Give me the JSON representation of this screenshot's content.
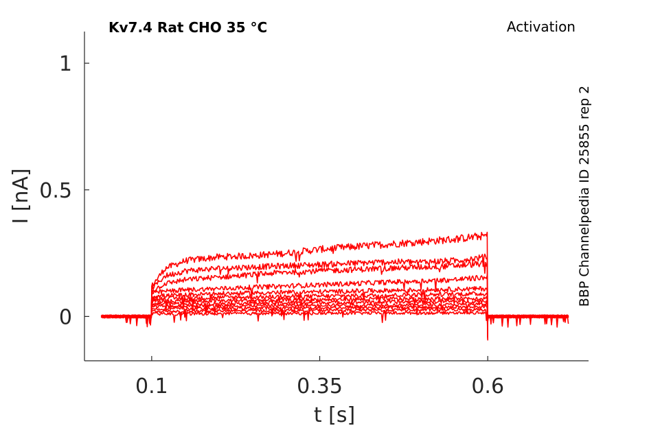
{
  "chart_data": {
    "type": "line",
    "title": "Kv7.4  Rat  CHO  35 °C",
    "protocol_label": "Activation",
    "source_label": "BBP Channelpedia ID 25855 rep 2",
    "xlabel": "t [s]",
    "ylabel": "I [nA]",
    "xlim": [
      0.0,
      0.75
    ],
    "ylim": [
      -0.175,
      1.125
    ],
    "xticks": [
      0.1,
      0.35,
      0.6
    ],
    "xtick_labels": [
      "0.1",
      "0.35",
      "0.6"
    ],
    "yticks": [
      0,
      0.5,
      1
    ],
    "ytick_labels": [
      "0",
      "0.5",
      "1"
    ],
    "grid": false,
    "legend": false,
    "line_color": "#ff0000",
    "axis_color": "#262626",
    "series": [
      {
        "values": [
          [
            0.025,
            0.0
          ],
          [
            0.1,
            0.0
          ],
          [
            0.1,
            0.12
          ],
          [
            0.12,
            0.19
          ],
          [
            0.15,
            0.22
          ],
          [
            0.2,
            0.235
          ],
          [
            0.25,
            0.24
          ],
          [
            0.3,
            0.25
          ],
          [
            0.35,
            0.265
          ],
          [
            0.4,
            0.275
          ],
          [
            0.45,
            0.285
          ],
          [
            0.5,
            0.295
          ],
          [
            0.55,
            0.305
          ],
          [
            0.6,
            0.32
          ],
          [
            0.6,
            0.0
          ],
          [
            0.72,
            0.0
          ]
        ]
      },
      {
        "values": [
          [
            0.025,
            0.0
          ],
          [
            0.1,
            0.0
          ],
          [
            0.1,
            0.11
          ],
          [
            0.12,
            0.16
          ],
          [
            0.15,
            0.18
          ],
          [
            0.2,
            0.19
          ],
          [
            0.25,
            0.195
          ],
          [
            0.3,
            0.2
          ],
          [
            0.35,
            0.205
          ],
          [
            0.4,
            0.21
          ],
          [
            0.45,
            0.215
          ],
          [
            0.5,
            0.215
          ],
          [
            0.55,
            0.22
          ],
          [
            0.6,
            0.235
          ],
          [
            0.6,
            0.0
          ],
          [
            0.72,
            0.0
          ]
        ]
      },
      {
        "values": [
          [
            0.025,
            0.0
          ],
          [
            0.1,
            0.0
          ],
          [
            0.1,
            0.1
          ],
          [
            0.12,
            0.13
          ],
          [
            0.15,
            0.145
          ],
          [
            0.2,
            0.155
          ],
          [
            0.25,
            0.165
          ],
          [
            0.3,
            0.175
          ],
          [
            0.35,
            0.18
          ],
          [
            0.4,
            0.185
          ],
          [
            0.45,
            0.19
          ],
          [
            0.5,
            0.195
          ],
          [
            0.55,
            0.2
          ],
          [
            0.6,
            0.21
          ],
          [
            0.6,
            0.0
          ],
          [
            0.72,
            0.0
          ]
        ]
      },
      {
        "values": [
          [
            0.025,
            0.0
          ],
          [
            0.1,
            0.0
          ],
          [
            0.1,
            0.09
          ],
          [
            0.12,
            0.1
          ],
          [
            0.15,
            0.105
          ],
          [
            0.2,
            0.11
          ],
          [
            0.25,
            0.115
          ],
          [
            0.3,
            0.12
          ],
          [
            0.35,
            0.125
          ],
          [
            0.4,
            0.13
          ],
          [
            0.45,
            0.135
          ],
          [
            0.5,
            0.14
          ],
          [
            0.55,
            0.145
          ],
          [
            0.6,
            0.155
          ],
          [
            0.6,
            0.0
          ],
          [
            0.72,
            0.0
          ]
        ]
      },
      {
        "values": [
          [
            0.025,
            0.0
          ],
          [
            0.1,
            0.0
          ],
          [
            0.1,
            0.08
          ],
          [
            0.15,
            0.085
          ],
          [
            0.2,
            0.09
          ],
          [
            0.3,
            0.095
          ],
          [
            0.4,
            0.1
          ],
          [
            0.5,
            0.105
          ],
          [
            0.6,
            0.11
          ],
          [
            0.6,
            0.0
          ],
          [
            0.72,
            0.0
          ]
        ]
      },
      {
        "values": [
          [
            0.025,
            0.0
          ],
          [
            0.1,
            0.0
          ],
          [
            0.1,
            0.07
          ],
          [
            0.15,
            0.072
          ],
          [
            0.2,
            0.075
          ],
          [
            0.3,
            0.078
          ],
          [
            0.4,
            0.082
          ],
          [
            0.5,
            0.086
          ],
          [
            0.6,
            0.09
          ],
          [
            0.6,
            0.0
          ],
          [
            0.72,
            0.0
          ]
        ]
      },
      {
        "values": [
          [
            0.025,
            0.0
          ],
          [
            0.1,
            0.0
          ],
          [
            0.1,
            0.06
          ],
          [
            0.2,
            0.062
          ],
          [
            0.3,
            0.065
          ],
          [
            0.4,
            0.068
          ],
          [
            0.5,
            0.07
          ],
          [
            0.6,
            0.072
          ],
          [
            0.6,
            0.0
          ],
          [
            0.72,
            0.0
          ]
        ]
      },
      {
        "values": [
          [
            0.025,
            0.0
          ],
          [
            0.1,
            0.0
          ],
          [
            0.1,
            0.05
          ],
          [
            0.2,
            0.052
          ],
          [
            0.3,
            0.054
          ],
          [
            0.4,
            0.056
          ],
          [
            0.5,
            0.058
          ],
          [
            0.6,
            0.06
          ],
          [
            0.6,
            0.0
          ],
          [
            0.72,
            0.0
          ]
        ]
      },
      {
        "values": [
          [
            0.025,
            0.0
          ],
          [
            0.1,
            0.0
          ],
          [
            0.1,
            0.04
          ],
          [
            0.2,
            0.042
          ],
          [
            0.3,
            0.044
          ],
          [
            0.4,
            0.045
          ],
          [
            0.5,
            0.046
          ],
          [
            0.6,
            0.048
          ],
          [
            0.6,
            0.0
          ],
          [
            0.72,
            0.0
          ]
        ]
      },
      {
        "values": [
          [
            0.025,
            0.0
          ],
          [
            0.1,
            0.0
          ],
          [
            0.1,
            0.03
          ],
          [
            0.2,
            0.032
          ],
          [
            0.3,
            0.034
          ],
          [
            0.4,
            0.035
          ],
          [
            0.5,
            0.036
          ],
          [
            0.6,
            0.038
          ],
          [
            0.6,
            0.0
          ],
          [
            0.72,
            0.0
          ]
        ]
      },
      {
        "values": [
          [
            0.025,
            0.0
          ],
          [
            0.1,
            0.0
          ],
          [
            0.1,
            0.02
          ],
          [
            0.2,
            0.022
          ],
          [
            0.3,
            0.024
          ],
          [
            0.4,
            0.025
          ],
          [
            0.5,
            0.026
          ],
          [
            0.6,
            0.028
          ],
          [
            0.6,
            0.0
          ],
          [
            0.72,
            0.0
          ]
        ]
      },
      {
        "values": [
          [
            0.025,
            0.0
          ],
          [
            0.1,
            0.0
          ],
          [
            0.1,
            0.01
          ],
          [
            0.3,
            0.012
          ],
          [
            0.6,
            0.015
          ],
          [
            0.6,
            0.0
          ],
          [
            0.72,
            0.0
          ]
        ]
      }
    ]
  }
}
